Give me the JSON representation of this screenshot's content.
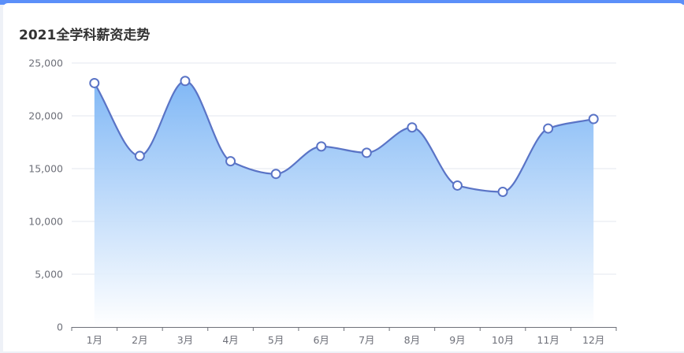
{
  "card": {
    "title": "2021全学科薪资走势"
  },
  "colors": {
    "line": "#5a74c6",
    "area_top": "#7ab4f5",
    "area_bottom": "#ffffff",
    "grid": "#e3e7ef",
    "axis": "#6e7079",
    "tick_label": "#6e7079",
    "point_fill": "#ffffff",
    "accent_bar": "#5b8ff9"
  },
  "chart_data": {
    "type": "area",
    "title": "2021全学科薪资走势",
    "xlabel": "",
    "ylabel": "",
    "categories": [
      "1月",
      "2月",
      "3月",
      "4月",
      "5月",
      "6月",
      "7月",
      "8月",
      "9月",
      "10月",
      "11月",
      "12月"
    ],
    "values": [
      23100,
      16200,
      23300,
      15700,
      14500,
      17100,
      16500,
      18900,
      13400,
      12800,
      18800,
      19700
    ],
    "ylim": [
      0,
      25000
    ],
    "yticks": [
      0,
      5000,
      10000,
      15000,
      20000,
      25000
    ],
    "ytick_labels": [
      "0",
      "5,000",
      "10,000",
      "15,000",
      "20,000",
      "25,000"
    ],
    "smooth": true,
    "grid": true,
    "legend": "none"
  }
}
